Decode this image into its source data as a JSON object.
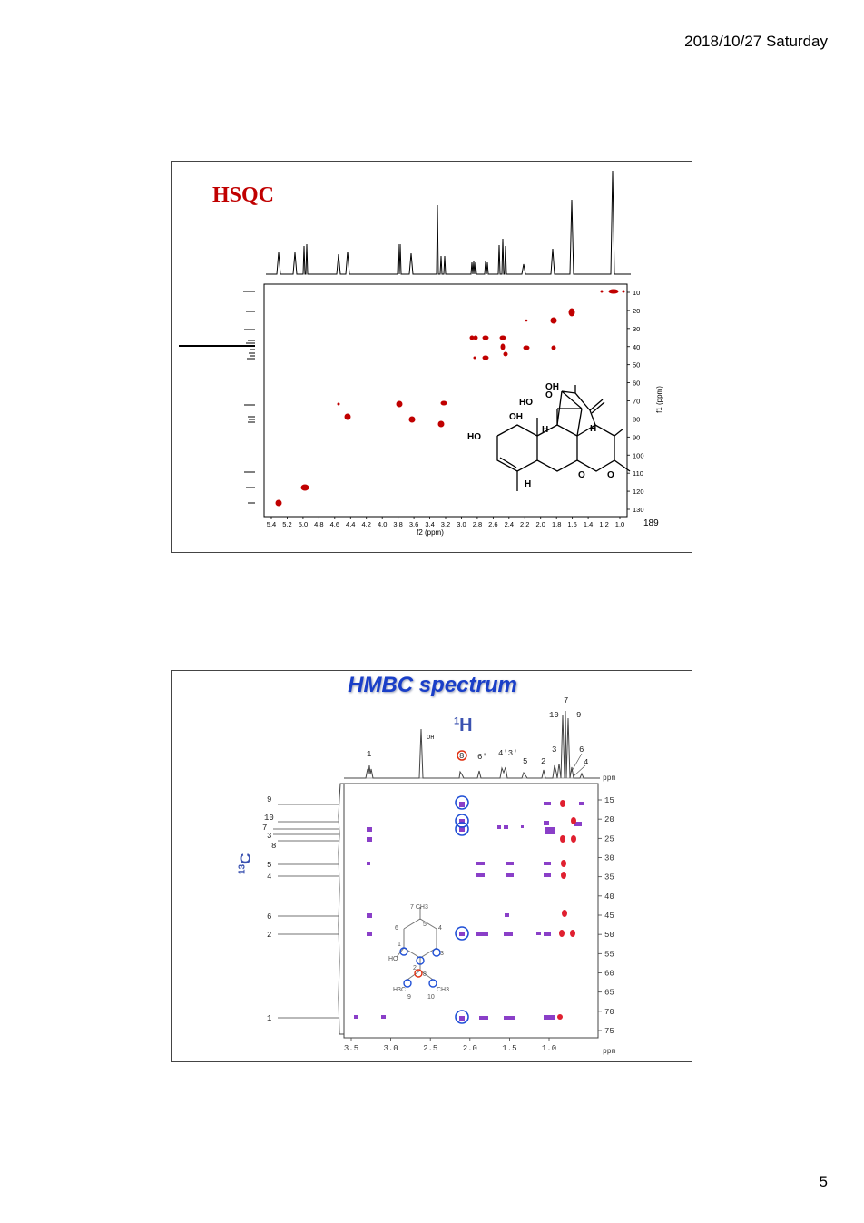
{
  "header": {
    "date": "2018/10/27 Saturday"
  },
  "footer": {
    "page_number": "5"
  },
  "hsqc": {
    "title": "HSQC",
    "slide_number": "189",
    "x_axis_label": "f2 (ppm)",
    "y_axis_label": "f1 (ppm)",
    "x_ticks": [
      "5.4",
      "5.2",
      "5.0",
      "4.8",
      "4.6",
      "4.4",
      "4.2",
      "4.0",
      "3.8",
      "3.6",
      "3.4",
      "3.2",
      "3.0",
      "2.8",
      "2.6",
      "2.4",
      "2.2",
      "2.0",
      "1.8",
      "1.6",
      "1.4",
      "1.2",
      "1.0"
    ],
    "y_ticks": [
      "10",
      "20",
      "30",
      "40",
      "50",
      "60",
      "70",
      "80",
      "90",
      "100",
      "110",
      "120",
      "130"
    ],
    "structure_labels": [
      "OH",
      "HO",
      "O",
      "OH",
      "HO",
      "H",
      "H",
      "H",
      "O",
      "O"
    ],
    "colors": {
      "title": "#c00000",
      "peak": "#c00000"
    }
  },
  "hmbc": {
    "title": "HMBC spectrum",
    "h_axis_title": "H",
    "h_axis_sup": "1",
    "c_axis_title": "C",
    "c_axis_sup": "13",
    "x_unit": "ppm",
    "y_unit": "ppm",
    "x_ticks": [
      "3.5",
      "3.0",
      "2.5",
      "2.0",
      "1.5",
      "1.0"
    ],
    "y_ticks": [
      "15",
      "20",
      "25",
      "30",
      "35",
      "40",
      "45",
      "50",
      "55",
      "60",
      "65",
      "70",
      "75"
    ],
    "h_peak_labels": [
      "1",
      "OH",
      "8",
      "6'",
      "4'3'",
      "5",
      "2",
      "3",
      "10",
      "7",
      "9",
      "6",
      "4"
    ],
    "c_peak_labels": [
      "9",
      "10",
      "7",
      "3",
      "8",
      "5",
      "4",
      "6",
      "2",
      "1"
    ],
    "structure_labels": [
      "7 CH3",
      "5",
      "6",
      "4",
      "1",
      "3",
      "HO",
      "2",
      "8",
      "H3C",
      "CH3",
      "9",
      "10"
    ],
    "colors": {
      "title": "#1a3fc8",
      "axis_label": "#3b52b0",
      "circle_blue": "#1f4fd6",
      "circle_red": "#e03010",
      "cross_peak": "#8a3fc8"
    }
  }
}
